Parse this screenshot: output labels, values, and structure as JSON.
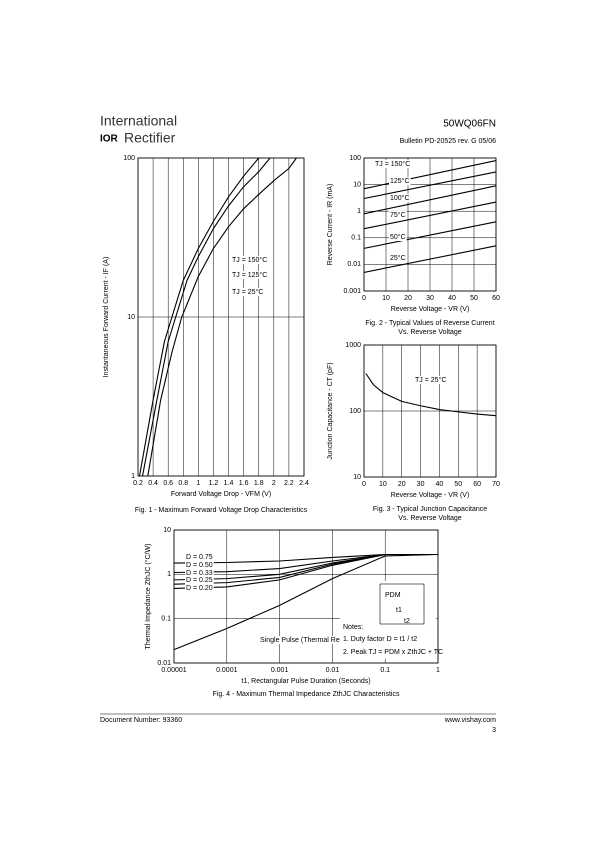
{
  "header": {
    "brand_top": "International",
    "brand_logo": "IOR",
    "brand_bottom": "Rectifier",
    "part_number": "50WQ06FN",
    "bulletin": "Bulletin  PD-20525  rev. G  05/06"
  },
  "footer": {
    "document_number": "Document Number: 93360",
    "website": "www.vishay.com",
    "page": "3"
  },
  "chart_data": [
    {
      "type": "line",
      "title": "Fig. 1 - Maximum Forward Voltage Drop Characteristics",
      "x_label": "Forward Voltage Drop - VFM (V)",
      "y_label": "Instantaneous Forward Current - IF (A)",
      "xscale": "linear",
      "yscale": "log",
      "grid": true,
      "xlim": [
        0.2,
        2.4
      ],
      "xticks": [
        0.2,
        0.4,
        0.6,
        0.8,
        1,
        1.2,
        1.4,
        1.6,
        1.8,
        2,
        2.2,
        2.4
      ],
      "ylim": [
        1,
        100
      ],
      "yticks": [
        1,
        10,
        100
      ],
      "series": [
        {
          "name": "TJ = 150°C",
          "color": "#000000",
          "x": [
            0.22,
            0.4,
            0.55,
            0.65,
            0.8,
            1.0,
            1.2,
            1.4,
            1.6,
            1.8
          ],
          "values": [
            1,
            3,
            7,
            10,
            17,
            27,
            40,
            57,
            77,
            100
          ]
        },
        {
          "name": "TJ = 125°C",
          "color": "#000000",
          "x": [
            0.26,
            0.45,
            0.6,
            0.7,
            0.85,
            1.0,
            1.2,
            1.4,
            1.6,
            1.8,
            1.95
          ],
          "values": [
            1,
            3,
            7,
            10,
            17,
            24,
            36,
            50,
            66,
            82,
            100
          ]
        },
        {
          "name": "TJ =   25°C",
          "color": "#000000",
          "x": [
            0.33,
            0.5,
            0.65,
            0.78,
            1.0,
            1.2,
            1.4,
            1.6,
            1.8,
            2.0,
            2.2,
            2.3
          ],
          "values": [
            1,
            3,
            6,
            10,
            18,
            27,
            37,
            48,
            59,
            72,
            86,
            100
          ]
        }
      ]
    },
    {
      "type": "line",
      "title": "Fig. 2 - Typical Values of Reverse Current",
      "subtitle": "Vs. Reverse Voltage",
      "x_label": "Reverse Voltage - VR (V)",
      "y_label": "Reverse Current - IR (mA)",
      "xscale": "linear",
      "yscale": "log",
      "grid": true,
      "xlim": [
        0,
        60
      ],
      "xticks": [
        0,
        10,
        20,
        30,
        40,
        50,
        60
      ],
      "ylim": [
        0.001,
        100
      ],
      "yticks": [
        0.001,
        0.01,
        0.1,
        1,
        10,
        100
      ],
      "series": [
        {
          "name": "TJ = 150°C",
          "color": "#000000",
          "x": [
            0,
            60
          ],
          "values": [
            7,
            80
          ]
        },
        {
          "name": "125°C",
          "color": "#000000",
          "x": [
            0,
            60
          ],
          "values": [
            3,
            30
          ]
        },
        {
          "name": "100°C",
          "color": "#000000",
          "x": [
            0,
            60
          ],
          "values": [
            0.8,
            9
          ]
        },
        {
          "name": "75°C",
          "color": "#000000",
          "x": [
            0,
            60
          ],
          "values": [
            0.22,
            2.2
          ]
        },
        {
          "name": "50°C",
          "color": "#000000",
          "x": [
            0,
            60
          ],
          "values": [
            0.04,
            0.4
          ]
        },
        {
          "name": "25°C",
          "color": "#000000",
          "x": [
            0,
            60
          ],
          "values": [
            0.005,
            0.05
          ]
        }
      ]
    },
    {
      "type": "line",
      "title": "Fig. 3 - Typical Junction Capacitance",
      "subtitle": "Vs. Reverse Voltage",
      "x_label": "Reverse Voltage - VR (V)",
      "y_label": "Junction Capacitance - CT (pF)",
      "xscale": "linear",
      "yscale": "log",
      "grid": true,
      "xlim": [
        0,
        70
      ],
      "xticks": [
        0,
        10,
        20,
        30,
        40,
        50,
        60,
        70
      ],
      "ylim": [
        10,
        1000
      ],
      "yticks": [
        10,
        100,
        1000
      ],
      "series": [
        {
          "name": "TJ = 25°C",
          "color": "#000000",
          "x": [
            1,
            5,
            10,
            20,
            30,
            40,
            50,
            60,
            70
          ],
          "values": [
            370,
            250,
            190,
            140,
            120,
            105,
            97,
            90,
            85
          ]
        }
      ]
    },
    {
      "type": "line",
      "title": "Fig. 4 - Maximum Thermal Impedance ZthJC Characteristics",
      "x_label": "t1, Rectangular Pulse Duration (Seconds)",
      "y_label": "Thermal Impedance ZthJC (°C/W)",
      "xscale": "log",
      "yscale": "log",
      "grid": true,
      "xlim": [
        1e-05,
        1
      ],
      "xticks": [
        1e-05,
        0.0001,
        0.001,
        0.01,
        0.1,
        1
      ],
      "ylim": [
        0.01,
        10
      ],
      "yticks": [
        0.01,
        0.1,
        1,
        10
      ],
      "annotations": [
        "Notes:",
        "1. Duty factor D = t1 / t2",
        "2. Peak TJ = PDM x ZthJC + TC",
        "PDM",
        "t1",
        "t2"
      ],
      "series": [
        {
          "name": "D = 0.75",
          "color": "#000000",
          "x": [
            1e-05,
            0.0001,
            0.001,
            0.01,
            0.1,
            1
          ],
          "values": [
            1.8,
            1.85,
            2.0,
            2.4,
            2.8,
            2.8
          ]
        },
        {
          "name": "D = 0.50",
          "color": "#000000",
          "x": [
            1e-05,
            0.0001,
            0.001,
            0.01,
            0.1,
            1
          ],
          "values": [
            1.1,
            1.15,
            1.35,
            2.0,
            2.8,
            2.8
          ]
        },
        {
          "name": "D = 0.33",
          "color": "#000000",
          "x": [
            1e-05,
            0.0001,
            0.001,
            0.01,
            0.1,
            1
          ],
          "values": [
            0.75,
            0.8,
            1.0,
            1.8,
            2.8,
            2.8
          ]
        },
        {
          "name": "D = 0.25",
          "color": "#000000",
          "x": [
            1e-05,
            0.0001,
            0.001,
            0.01,
            0.1,
            1
          ],
          "values": [
            0.6,
            0.65,
            0.85,
            1.7,
            2.8,
            2.8
          ]
        },
        {
          "name": "D = 0.20",
          "color": "#000000",
          "x": [
            1e-05,
            0.0001,
            0.001,
            0.01,
            0.1,
            1
          ],
          "values": [
            0.48,
            0.52,
            0.75,
            1.6,
            2.8,
            2.8
          ]
        },
        {
          "name": "Single Pulse (Thermal Resistance)",
          "color": "#000000",
          "x": [
            1e-05,
            0.0001,
            0.001,
            0.01,
            0.1,
            1
          ],
          "values": [
            0.02,
            0.06,
            0.2,
            0.8,
            2.6,
            2.8
          ]
        }
      ]
    }
  ]
}
